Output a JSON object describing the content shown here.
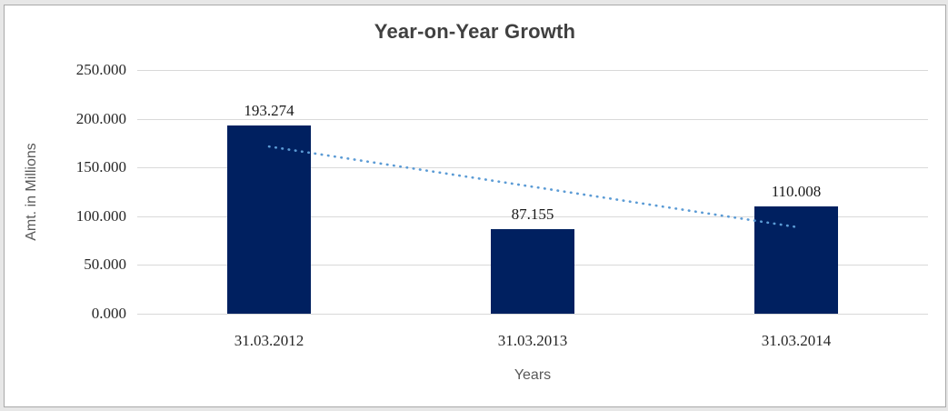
{
  "frame": {
    "background": "#ffffff",
    "border_color": "#a9a9a9",
    "outer_background": "#e7e7e7"
  },
  "chart_data": {
    "type": "bar",
    "title": "Year-on-Year Growth",
    "categories": [
      "31.03.2012",
      "31.03.2013",
      "31.03.2014"
    ],
    "values": [
      193.274,
      87.155,
      110.008
    ],
    "data_labels": [
      "193.274",
      "87.155",
      "110.008"
    ],
    "xlabel": "Years",
    "ylabel": "Amt. in Millions",
    "ylim": [
      0,
      250
    ],
    "y_ticks": [
      0,
      50,
      100,
      150,
      200,
      250
    ],
    "y_tick_labels": [
      "0.000",
      "50.000",
      "100.000",
      "150.000",
      "200.000",
      "250.000"
    ],
    "grid": true,
    "legend_position": "none",
    "bar_color": "#002060",
    "gridline_color": "#d9d9d9",
    "title_color": "#404040",
    "axis_title_color": "#595959",
    "label_color": "#262626",
    "trendline": {
      "type": "linear",
      "style": "dotted",
      "color": "#5B9BD5",
      "y_start": 171.5,
      "y_end": 89.0
    }
  }
}
